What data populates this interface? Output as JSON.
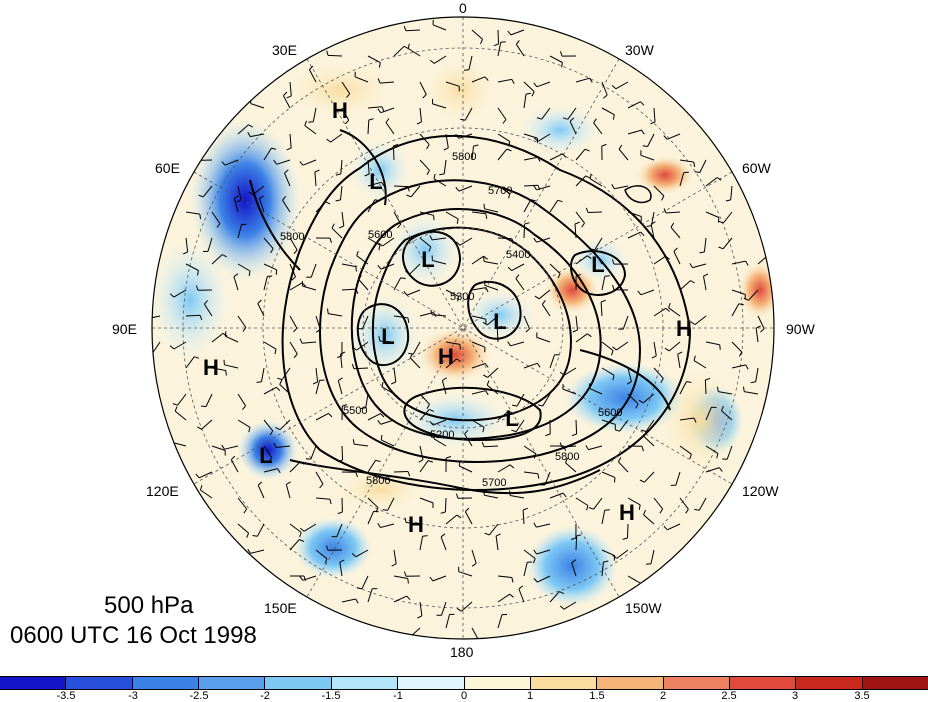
{
  "caption": {
    "level": "500 hPa",
    "time": "0600 UTC 16 Oct 1998"
  },
  "longitude_labels": [
    "0",
    "30W",
    "60W",
    "90W",
    "120W",
    "150W",
    "180",
    "150E",
    "120E",
    "90E",
    "60E",
    "30E"
  ],
  "pressure_centers": [
    {
      "type": "H",
      "label": "H"
    },
    {
      "type": "H",
      "label": "H"
    },
    {
      "type": "H",
      "label": "H"
    },
    {
      "type": "H",
      "label": "H"
    },
    {
      "type": "H",
      "label": "H"
    },
    {
      "type": "H",
      "label": "H"
    },
    {
      "type": "L",
      "label": "L"
    },
    {
      "type": "L",
      "label": "L"
    },
    {
      "type": "L",
      "label": "L"
    },
    {
      "type": "L",
      "label": "L"
    },
    {
      "type": "L",
      "label": "L"
    },
    {
      "type": "L",
      "label": "L"
    },
    {
      "type": "L",
      "label": "L"
    }
  ],
  "contour_labels": [
    "5800",
    "5700",
    "5600",
    "5500",
    "5400",
    "5300",
    "5200",
    "5700",
    "5800",
    "5600",
    "5800",
    "5800"
  ],
  "colorbar": {
    "ticks": [
      "-3.5",
      "-3",
      "-2.5",
      "-2",
      "-1.5",
      "-1",
      "0",
      "1",
      "1.5",
      "2",
      "2.5",
      "3",
      "3.5"
    ],
    "colors": [
      "#1414c8",
      "#2850dc",
      "#3c82e6",
      "#5aa0ee",
      "#7ec8f4",
      "#b4e6fa",
      "#e0f6fc",
      "#fcf6d8",
      "#f8dca0",
      "#f4b478",
      "#ec8060",
      "#e04a3c",
      "#c8281e",
      "#a01414"
    ]
  }
}
